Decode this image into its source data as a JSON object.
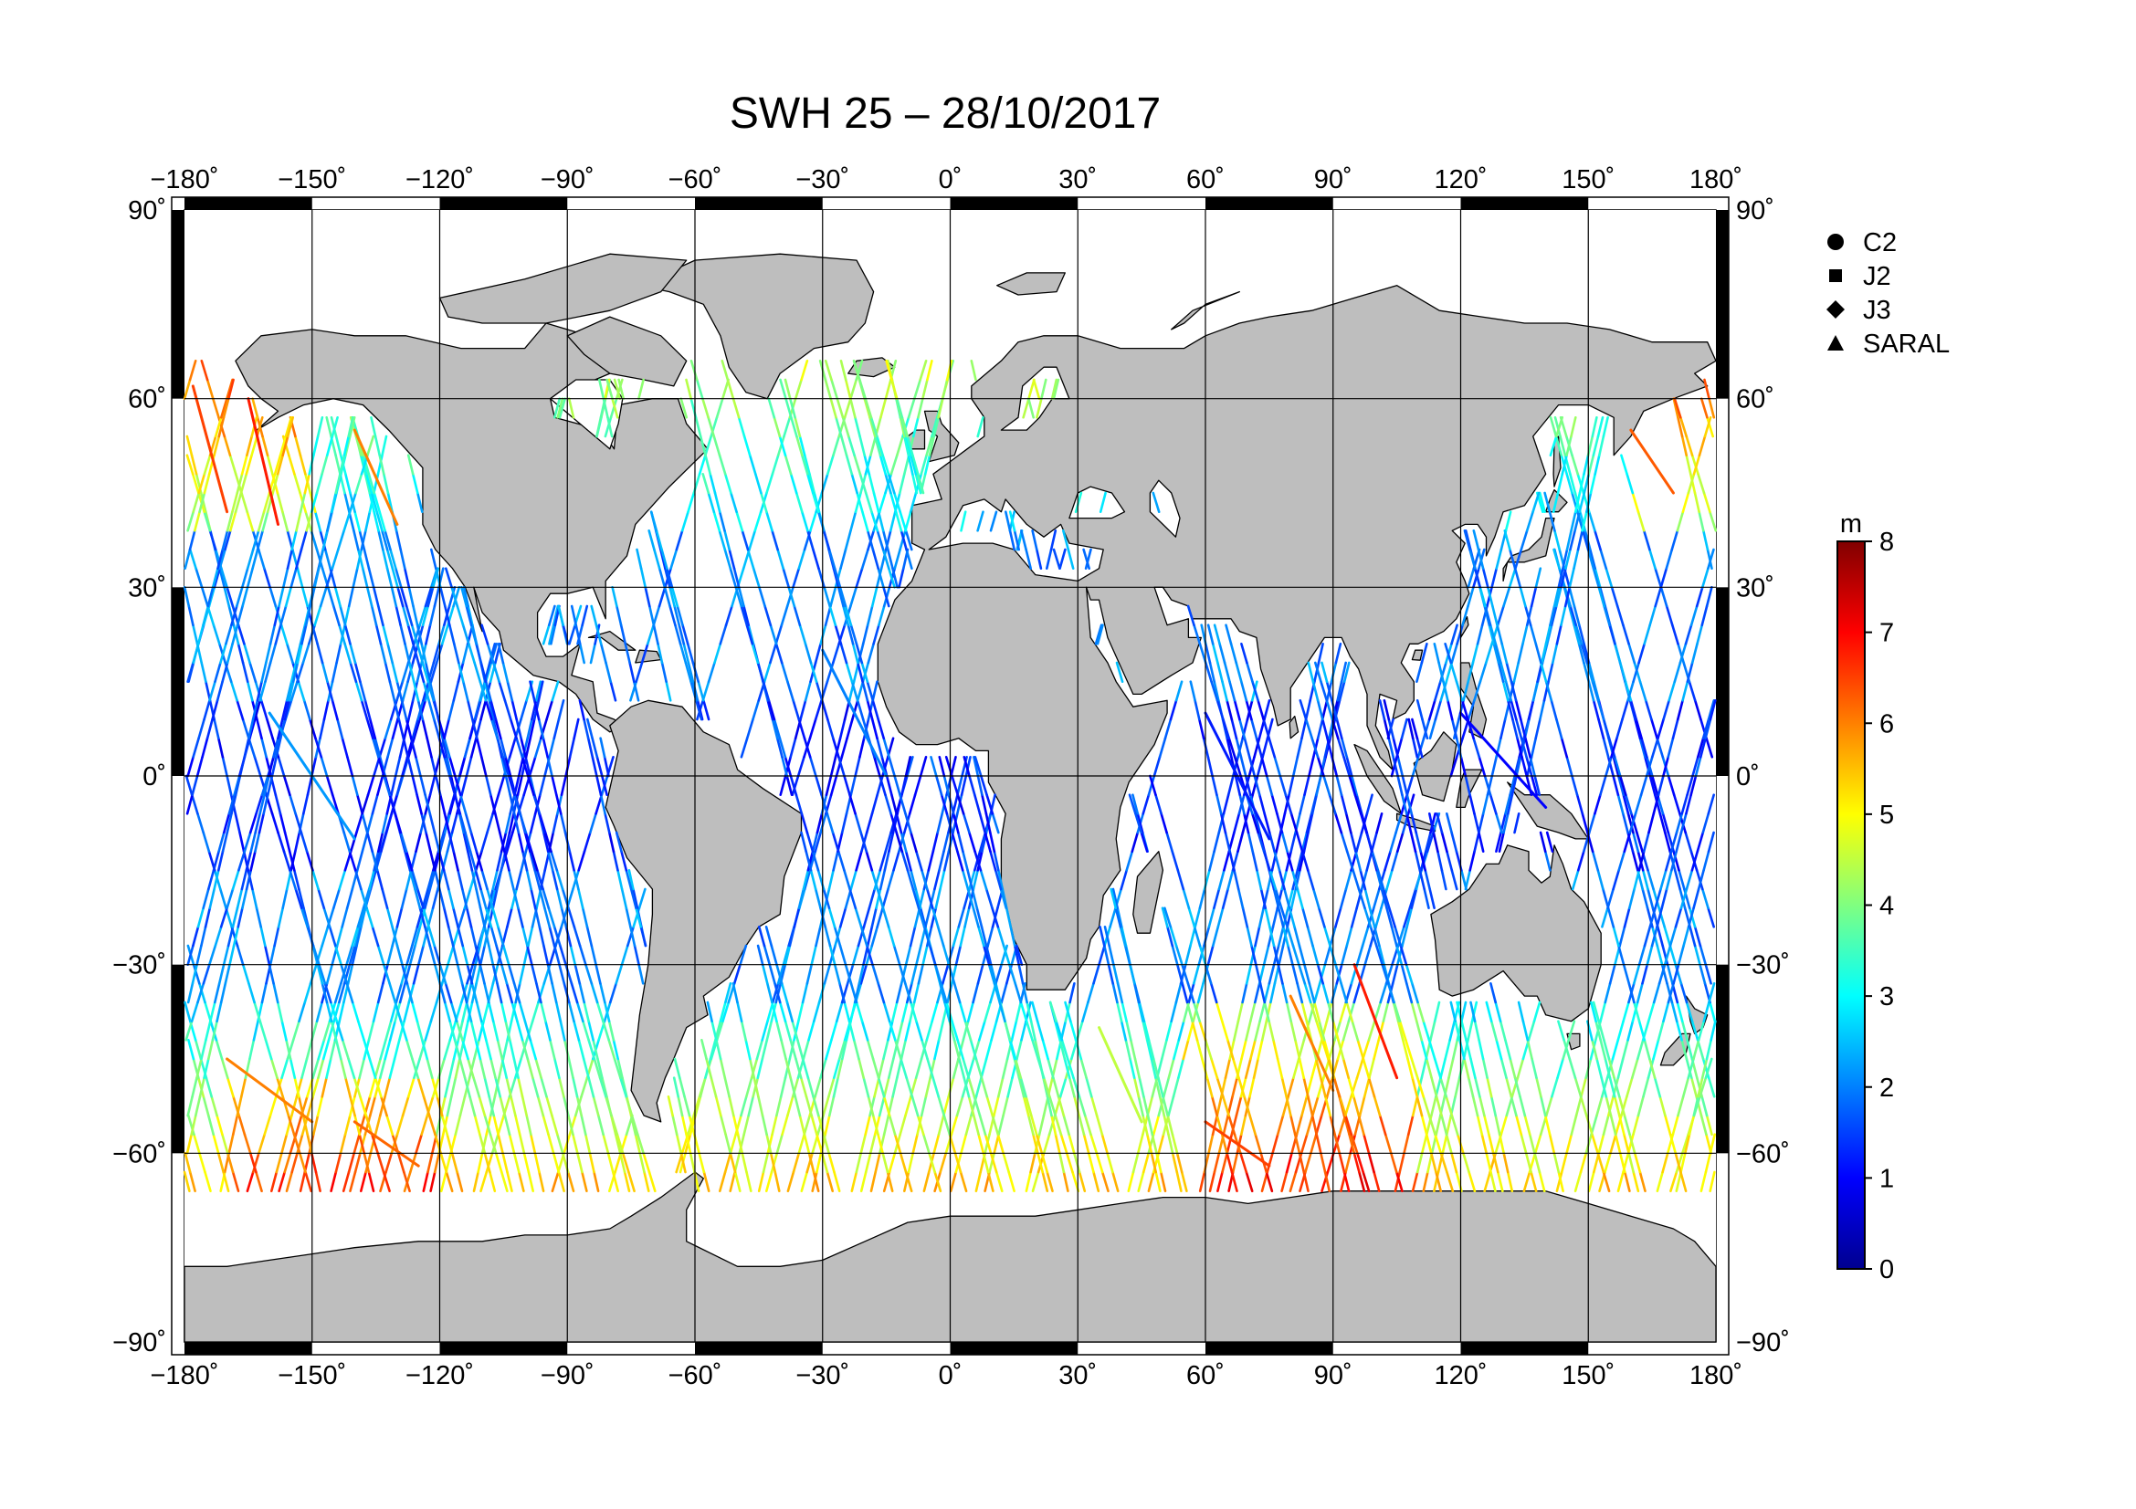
{
  "title": "SWH 25 – 28/10/2017",
  "map": {
    "projection": "equirectangular",
    "lon_range": [
      -180,
      180
    ],
    "lat_range": [
      -90,
      90
    ],
    "grid_step_deg": 30,
    "ocean_color": "#ffffff",
    "land_color": "#bebebe",
    "coast_color": "#000000",
    "grid_color": "#000000",
    "frame_fill": "#000000",
    "lon_ticks": [
      "−180˚",
      "−150˚",
      "−120˚",
      "−90˚",
      "−60˚",
      "−30˚",
      "0˚",
      "30˚",
      "60˚",
      "90˚",
      "120˚",
      "150˚",
      "180˚"
    ],
    "lat_ticks": [
      "90˚",
      "60˚",
      "30˚",
      "0˚",
      "−30˚",
      "−60˚",
      "−90˚"
    ]
  },
  "legend": {
    "items": [
      {
        "label": "C2",
        "symbol": "circle-icon"
      },
      {
        "label": "J2",
        "symbol": "square-icon"
      },
      {
        "label": "J3",
        "symbol": "diamond-icon"
      },
      {
        "label": "SARAL",
        "symbol": "triangle-icon"
      }
    ]
  },
  "colorbar": {
    "unit": "m",
    "min": 0,
    "max": 8,
    "ticks": [
      "0",
      "1",
      "2",
      "3",
      "4",
      "5",
      "6",
      "7",
      "8"
    ],
    "colormap": "jet",
    "stops": [
      "#00008f",
      "#0000ff",
      "#0080ff",
      "#00ffff",
      "#80ff80",
      "#ffff00",
      "#ff8000",
      "#ff0000",
      "#800000"
    ]
  },
  "chart_data": {
    "type": "map",
    "title": "SWH 25 – 28/10/2017",
    "variable": "SWH",
    "units": "m",
    "value_range": [
      0,
      8
    ],
    "xlim": [
      -180,
      180
    ],
    "ylim": [
      -90,
      90
    ],
    "series": [
      {
        "name": "C2"
      },
      {
        "name": "J2"
      },
      {
        "name": "J3"
      },
      {
        "name": "SARAL"
      }
    ],
    "tracks": [
      {
        "lon": [
          -178,
          -170
        ],
        "lat": [
          62,
          42
        ],
        "swh": 6.5
      },
      {
        "lon": [
          -165,
          -158
        ],
        "lat": [
          60,
          40
        ],
        "swh": 6.8
      },
      {
        "lon": [
          -140,
          -130
        ],
        "lat": [
          55,
          40
        ],
        "swh": 6.0
      },
      {
        "lon": [
          -170,
          -150
        ],
        "lat": [
          -45,
          -55
        ],
        "swh": 6.0
      },
      {
        "lon": [
          -140,
          -125
        ],
        "lat": [
          -55,
          -62
        ],
        "swh": 6.2
      },
      {
        "lon": [
          35,
          45
        ],
        "lat": [
          -40,
          -55
        ],
        "swh": 4.5
      },
      {
        "lon": [
          60,
          75
        ],
        "lat": [
          -55,
          -62
        ],
        "swh": 6.5
      },
      {
        "lon": [
          80,
          90
        ],
        "lat": [
          -35,
          -50
        ],
        "swh": 6.0
      },
      {
        "lon": [
          95,
          105
        ],
        "lat": [
          -30,
          -48
        ],
        "swh": 6.8
      },
      {
        "lon": [
          160,
          170
        ],
        "lat": [
          55,
          45
        ],
        "swh": 6.3
      },
      {
        "lon": [
          -160,
          -140
        ],
        "lat": [
          10,
          -10
        ],
        "swh": 2.2
      },
      {
        "lon": [
          -30,
          -15
        ],
        "lat": [
          20,
          0
        ],
        "swh": 2.0
      },
      {
        "lon": [
          60,
          75
        ],
        "lat": [
          10,
          -10
        ],
        "swh": 1.2
      },
      {
        "lon": [
          120,
          140
        ],
        "lat": [
          10,
          -5
        ],
        "swh": 1.0
      }
    ]
  }
}
